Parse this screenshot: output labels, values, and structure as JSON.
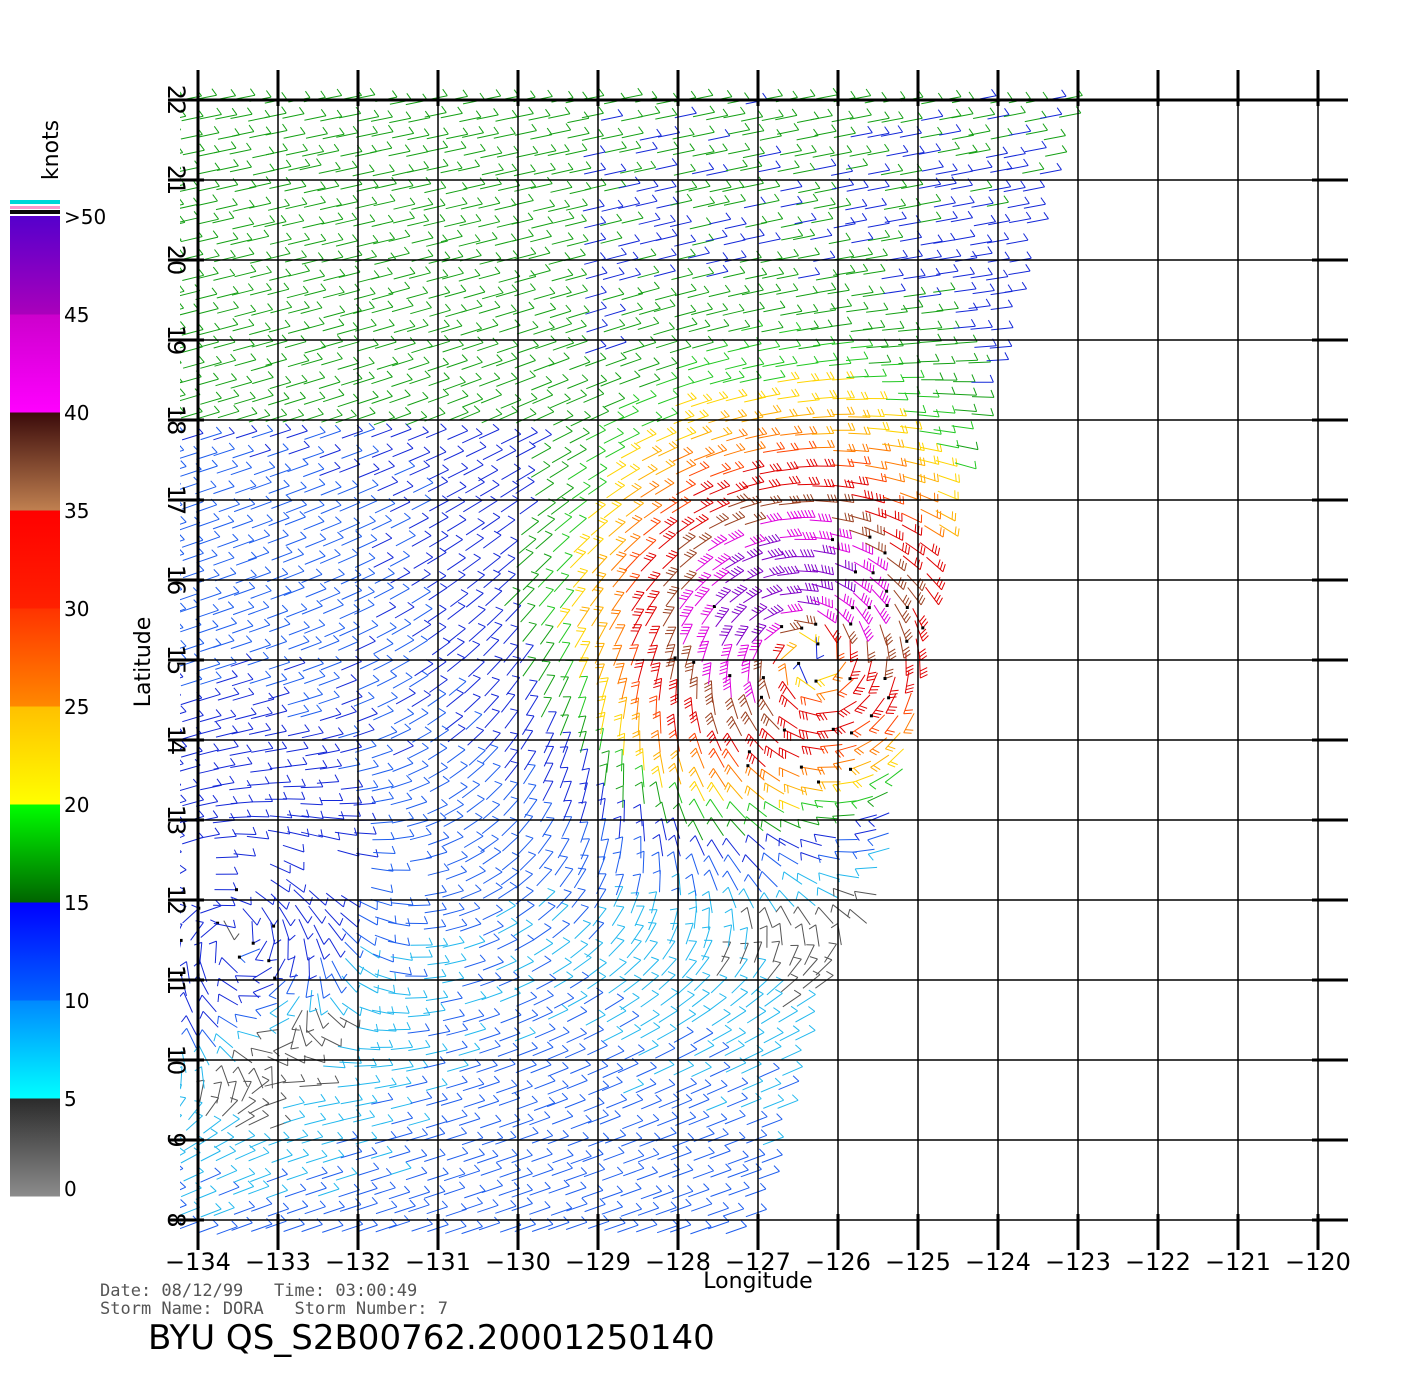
{
  "chart_data": {
    "type": "wind-vector-map",
    "xlabel": "Longitude",
    "ylabel": "Latitude",
    "x_ticks": [
      -134,
      -133,
      -132,
      -131,
      -130,
      -129,
      -128,
      -127,
      -126,
      -125,
      -124,
      -123,
      -122,
      -121,
      -120
    ],
    "y_ticks": [
      8,
      9,
      10,
      11,
      12,
      13,
      14,
      15,
      16,
      17,
      18,
      19,
      20,
      21,
      22
    ],
    "xlim": [
      -134,
      -120
    ],
    "ylim": [
      8,
      22
    ],
    "grid": true,
    "legend": {
      "unit": "knots",
      "labels": [
        "0",
        "5",
        "10",
        "15",
        "20",
        "25",
        "30",
        "35",
        "40",
        "45",
        ">50"
      ],
      "bands": [
        {
          "from": 0,
          "to": 5,
          "colors": [
            "#8c8c8c",
            "#2a2a2a"
          ]
        },
        {
          "from": 5,
          "to": 10,
          "colors": [
            "#00ffff",
            "#0088ff"
          ]
        },
        {
          "from": 10,
          "to": 15,
          "colors": [
            "#0066ff",
            "#0000ff"
          ]
        },
        {
          "from": 15,
          "to": 20,
          "colors": [
            "#006400",
            "#00ff00"
          ]
        },
        {
          "from": 20,
          "to": 25,
          "colors": [
            "#ffff00",
            "#ffc000"
          ]
        },
        {
          "from": 25,
          "to": 30,
          "colors": [
            "#ff8800",
            "#ff3300"
          ]
        },
        {
          "from": 30,
          "to": 35,
          "colors": [
            "#ff2000",
            "#ff0000"
          ]
        },
        {
          "from": 35,
          "to": 40,
          "colors": [
            "#c08050",
            "#3a0a0a"
          ]
        },
        {
          "from": 40,
          "to": 45,
          "colors": [
            "#ff00ff",
            "#cc00cc"
          ]
        },
        {
          "from": 45,
          "to": 50,
          "colors": [
            "#aa00bb",
            "#5500cc"
          ]
        }
      ]
    },
    "storm": {
      "center_lon": -126.4,
      "center_lat": 15.1,
      "peak_knots": 50
    },
    "secondary_center": {
      "lon": -133.6,
      "lat": 11.6
    },
    "swath": {
      "west_lon": -134,
      "north_lat": 22,
      "east_edge_south_lon": -127,
      "east_edge_north_lon": -123
    }
  },
  "info": {
    "date_line": "Date: 08/12/99   Time: 03:00:49",
    "storm_line": "Storm Name: DORA   Storm Number: 7",
    "title": "BYU QS_S2B00762.20001250140"
  }
}
